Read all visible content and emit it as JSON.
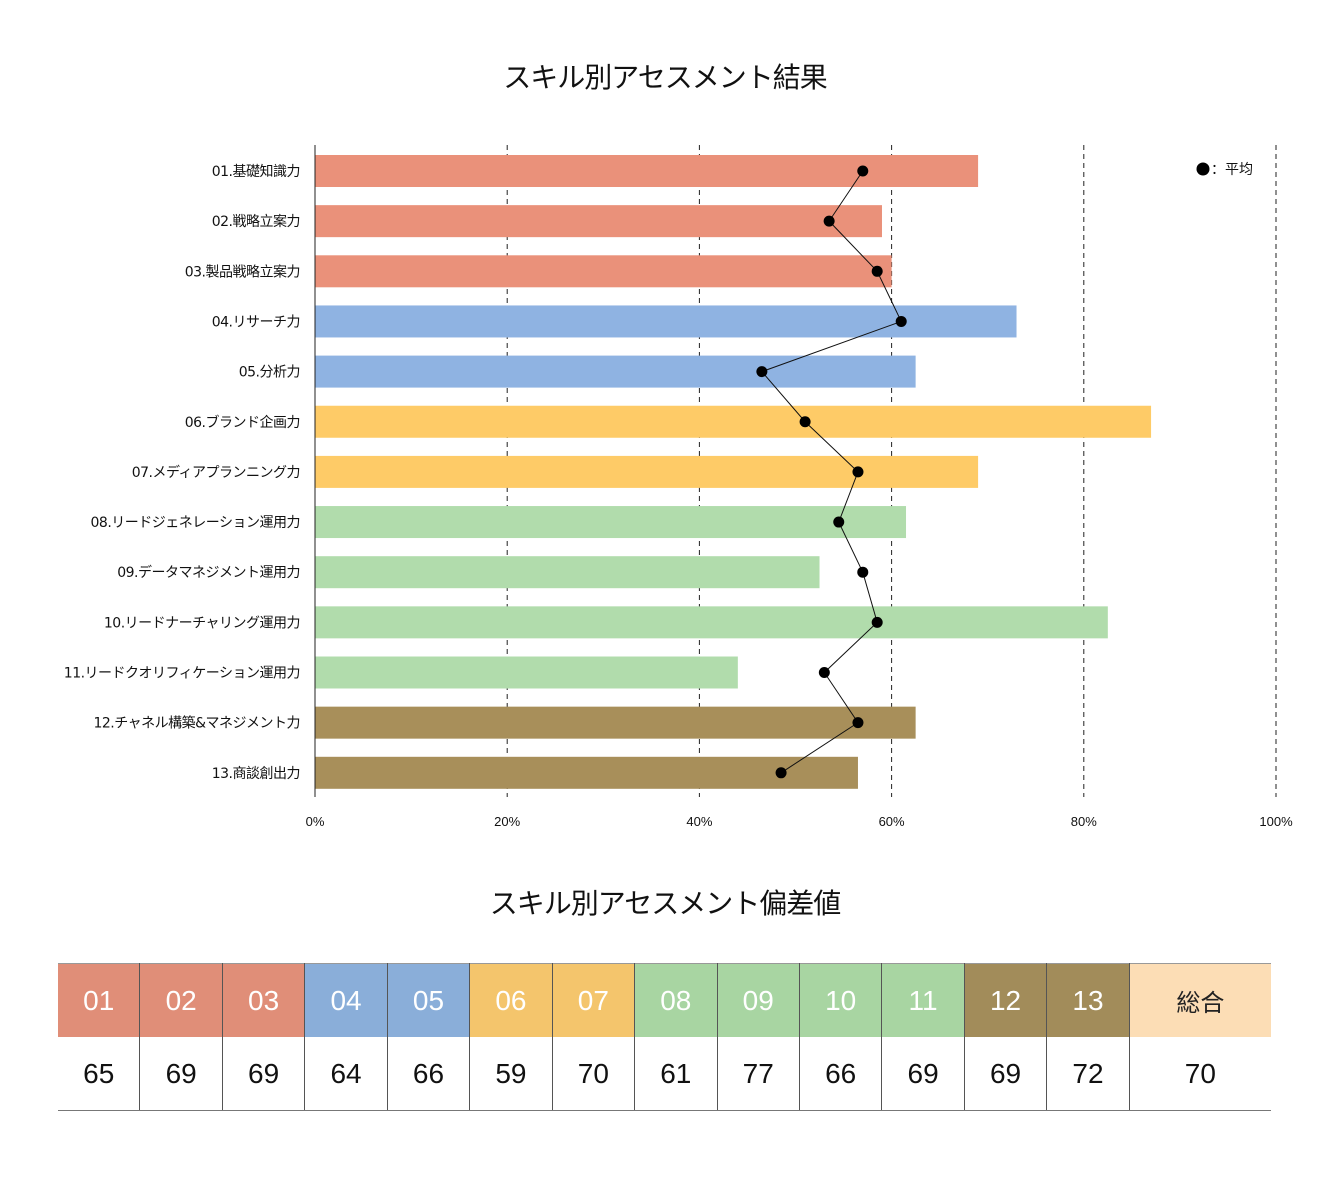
{
  "chart_data": {
    "type": "bar",
    "title": "スキル別アセスメント結果",
    "orientation": "horizontal",
    "categories": [
      "01.基礎知識力",
      "02.戦略立案力",
      "03.製品戦略立案力",
      "04.リサーチ力",
      "05.分析力",
      "06.ブランド企画力",
      "07.メディアプランニング力",
      "08.リードジェネレーション運用力",
      "09.データマネジメント運用力",
      "10.リードナーチャリング運用力",
      "11.リードクオリフィケーション運用力",
      "12.チャネル構築&マネジメント力",
      "13.商談創出力"
    ],
    "series": [
      {
        "type": "bar",
        "values": [
          69,
          59,
          60,
          73,
          62.5,
          87,
          69,
          61.5,
          52.5,
          82.5,
          44,
          62.5,
          56.5
        ]
      },
      {
        "name": "平均",
        "type": "line",
        "values": [
          57,
          53.5,
          58.5,
          61,
          46.5,
          51,
          56.5,
          54.5,
          57,
          58.5,
          53,
          56.5,
          48.5
        ]
      }
    ],
    "bar_colors": [
      "#EA917A",
      "#EA917A",
      "#EA917A",
      "#8FB3E2",
      "#8FB3E2",
      "#FECB67",
      "#FECB67",
      "#B1DCAC",
      "#B1DCAC",
      "#B1DCAC",
      "#B1DCAC",
      "#A88F5A",
      "#A88F5A"
    ],
    "xlim": [
      0,
      100
    ],
    "xticks": [
      "0%",
      "20%",
      "40%",
      "60%",
      "80%",
      "100%"
    ],
    "grid": "vertical dashed",
    "legend": {
      "label": "：平均",
      "position": "top-right"
    }
  },
  "table": {
    "title": "スキル別アセスメント偏差値",
    "headers": [
      "01",
      "02",
      "03",
      "04",
      "05",
      "06",
      "07",
      "08",
      "09",
      "10",
      "11",
      "12",
      "13",
      "総合"
    ],
    "values": [
      "65",
      "69",
      "69",
      "64",
      "66",
      "59",
      "70",
      "61",
      "77",
      "66",
      "69",
      "69",
      "72",
      "70"
    ],
    "colors": [
      "#E08E78",
      "#E08E78",
      "#E08E78",
      "#8AAED9",
      "#8AAED9",
      "#F4C56C",
      "#F4C56C",
      "#A8D5A2",
      "#A8D5A2",
      "#A8D5A2",
      "#A8D5A2",
      "#A28C5A",
      "#A28C5A",
      "#FCDDB5"
    ]
  }
}
